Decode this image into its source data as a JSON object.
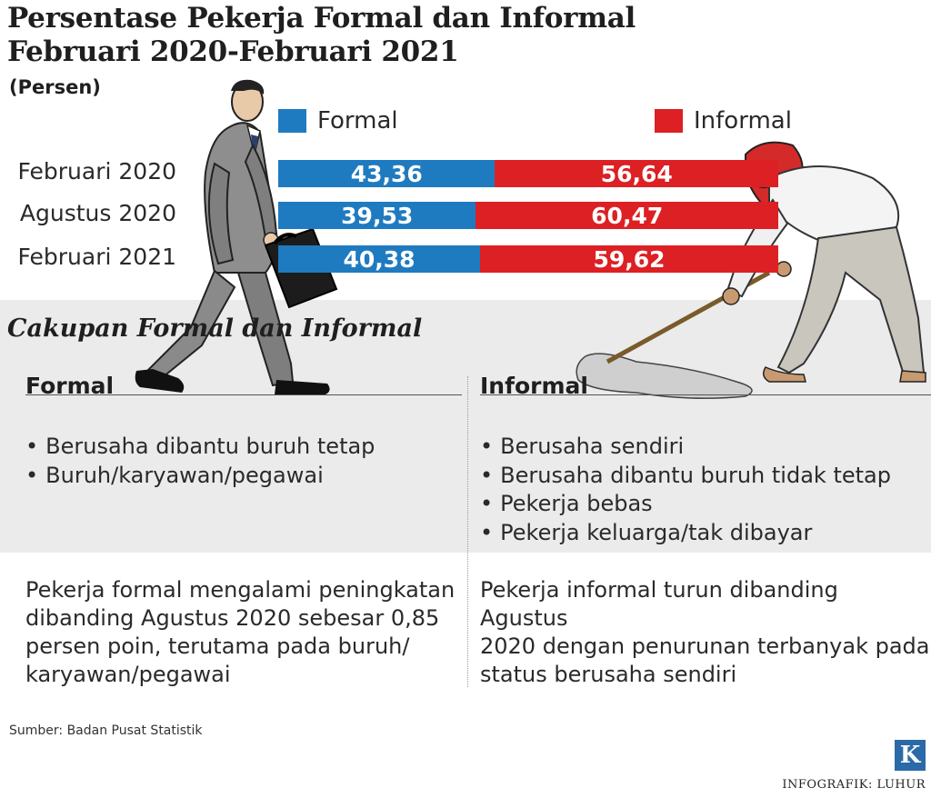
{
  "title_line1": "Persentase Pekerja Formal dan Informal",
  "title_line2": "Februari 2020-Februari 2021",
  "unit": "(Persen)",
  "colors": {
    "formal": "#1f7bc0",
    "informal": "#dc2023",
    "panel": "#ebebeb"
  },
  "chart_data": {
    "type": "bar",
    "orientation": "horizontal",
    "stacked": true,
    "categories": [
      "Februari 2020",
      "Agustus 2020",
      "Februari 2021"
    ],
    "series": [
      {
        "name": "Formal",
        "values": [
          43.36,
          39.53,
          40.38
        ],
        "labels": [
          "43,36",
          "39,53",
          "40,38"
        ],
        "color": "#1f7bc0"
      },
      {
        "name": "Informal",
        "values": [
          56.64,
          60.47,
          59.62
        ],
        "labels": [
          "56,64",
          "60,47",
          "59,62"
        ],
        "color": "#dc2023"
      }
    ],
    "xlim": [
      0,
      100
    ],
    "legend": "top",
    "grid": false
  },
  "section_title": "Cakupan Formal dan Informal",
  "formal": {
    "heading": "Formal",
    "items": [
      "Berusaha dibantu buruh tetap",
      "Buruh/karyawan/pegawai"
    ],
    "note": [
      "Pekerja formal mengalami peningkatan",
      "dibanding Agustus 2020 sebesar 0,85",
      "persen poin, terutama pada buruh/",
      "karyawan/pegawai"
    ]
  },
  "informal": {
    "heading": "Informal",
    "items": [
      "Berusaha sendiri",
      "Berusaha dibantu buruh tidak tetap",
      "Pekerja bebas",
      "Pekerja keluarga/tak dibayar"
    ],
    "note": [
      "Pekerja informal turun dibanding Agustus",
      "2020 dengan penurunan terbanyak pada",
      "status berusaha sendiri"
    ]
  },
  "source": "Sumber: Badan Pusat Statistik",
  "logo": "K",
  "credit": "INFOGRAFIK: LUHUR",
  "illustrations": {
    "left": "businessman-walking-icon",
    "right": "laborer-sweeping-icon"
  }
}
